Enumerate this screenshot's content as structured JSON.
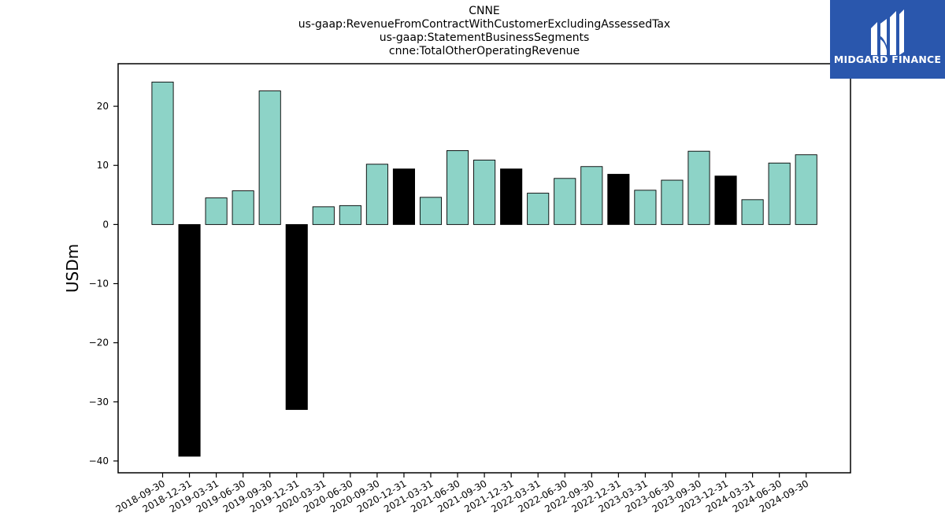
{
  "chart_data": {
    "type": "bar",
    "title_lines": [
      "CNNE",
      "us-gaap:RevenueFromContractWithCustomerExcludingAssessedTax",
      "us-gaap:StatementBusinessSegments",
      "cnne:TotalOtherOperatingRevenue"
    ],
    "xlabel": "",
    "ylabel": "USDm",
    "ylim": [
      -42,
      27.2
    ],
    "yticks": [
      -40,
      -30,
      -20,
      -10,
      0,
      10,
      20
    ],
    "grid": false,
    "categories": [
      "2018-09-30",
      "2018-12-31",
      "2019-03-31",
      "2019-06-30",
      "2019-09-30",
      "2019-12-31",
      "2020-03-31",
      "2020-06-30",
      "2020-09-30",
      "2020-12-31",
      "2021-03-31",
      "2021-06-30",
      "2021-09-30",
      "2021-12-31",
      "2022-03-31",
      "2022-06-30",
      "2022-09-30",
      "2022-12-31",
      "2023-03-31",
      "2023-06-30",
      "2023-09-30",
      "2023-12-31",
      "2024-03-31",
      "2024-06-30",
      "2024-09-30"
    ],
    "values": [
      24.1,
      -39.2,
      4.5,
      5.7,
      22.6,
      -31.3,
      3.0,
      3.2,
      10.2,
      9.4,
      4.6,
      12.5,
      10.9,
      9.4,
      5.3,
      7.8,
      9.8,
      8.5,
      5.8,
      7.5,
      12.4,
      8.2,
      4.2,
      10.4,
      11.8
    ],
    "bar_colors": [
      "#8dd3c7",
      "#000000",
      "#8dd3c7",
      "#8dd3c7",
      "#8dd3c7",
      "#000000",
      "#8dd3c7",
      "#8dd3c7",
      "#8dd3c7",
      "#000000",
      "#8dd3c7",
      "#8dd3c7",
      "#8dd3c7",
      "#000000",
      "#8dd3c7",
      "#8dd3c7",
      "#8dd3c7",
      "#000000",
      "#8dd3c7",
      "#8dd3c7",
      "#8dd3c7",
      "#000000",
      "#8dd3c7",
      "#8dd3c7",
      "#8dd3c7"
    ]
  },
  "logo": {
    "text": "MIDGARD FINANCE",
    "background": "#2a57ad",
    "icon": "midgard-logo-icon"
  }
}
